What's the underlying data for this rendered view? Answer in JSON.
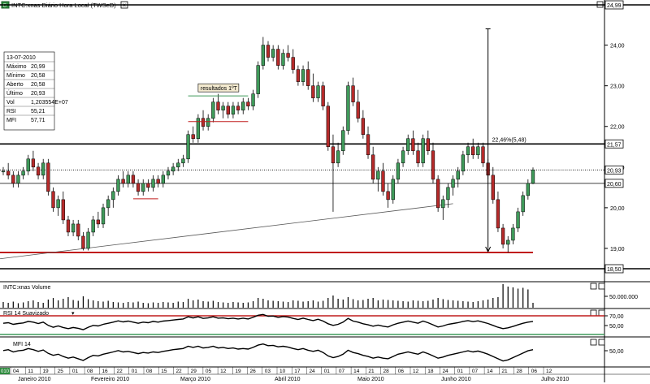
{
  "window": {
    "title": "INTC:xnas Diário Hora Local (TWSeD)",
    "close_glyph": "×"
  },
  "info_box": {
    "date": "13-07-2010",
    "rows": [
      {
        "label": "Máximo",
        "value": "20,99"
      },
      {
        "label": "Mínimo",
        "value": "20,58"
      },
      {
        "label": "Aberto",
        "value": "20,58"
      },
      {
        "label": "Último",
        "value": "20,93"
      },
      {
        "label": "Vol",
        "value": "1,203554E+07"
      },
      {
        "label": "RSI",
        "value": "55,21"
      },
      {
        "label": "MFI",
        "value": "57,71"
      }
    ]
  },
  "annotations": {
    "earnings_label": "resultados 1ºT",
    "move_label": "22,46%(5,48)"
  },
  "panels": {
    "volume_title": "INTC:xnas Volume",
    "rsi_title": "RSI 14 Suavizado",
    "mfi_title": "MFI 14",
    "volume_tick": "50.000.000",
    "rsi_ticks": [
      "70,00",
      "50,00"
    ],
    "mfi_ticks": [
      "50,00"
    ]
  },
  "colors": {
    "up": "#3f9a5a",
    "down": "#b52a2a",
    "support": "#c01c1c",
    "resistance": "#000000",
    "earnings_line": "#3f9a5a"
  },
  "chart_data": {
    "type": "candlestick",
    "symbol": "INTC:xnas",
    "ylim": [
      18.5,
      24.99
    ],
    "y_ticks": [
      19,
      20,
      21,
      22,
      23,
      24
    ],
    "y_tick_labels": [
      "19,00",
      "20,00",
      "21,00",
      "22,00",
      "23,00",
      "24,00"
    ],
    "price_labels": [
      {
        "value": 24.99,
        "text": "24,99"
      },
      {
        "value": 21.57,
        "text": "21,57"
      },
      {
        "value": 20.93,
        "text": "20,93"
      },
      {
        "value": 20.6,
        "text": "20,60"
      },
      {
        "value": 18.5,
        "text": "18,50"
      }
    ],
    "day_labels": [
      "04",
      "11",
      "19",
      "25",
      "01",
      "08",
      "16",
      "22",
      "01",
      "08",
      "15",
      "22",
      "29",
      "05",
      "12",
      "19",
      "26",
      "03",
      "10",
      "17",
      "24",
      "01",
      "07",
      "14",
      "21",
      "28",
      "06",
      "12",
      "18",
      "24",
      "01",
      "07",
      "14",
      "21",
      "28",
      "06",
      "12"
    ],
    "month_labels": [
      "Janeiro 2010",
      "Fevereiro 2010",
      "Março 2010",
      "Abril 2010",
      "Maio 2010",
      "Junho 2010",
      "Julho 2010"
    ],
    "bottom_edge_label": "010",
    "ohlc": [
      [
        20.9,
        21.0,
        20.8,
        20.9
      ],
      [
        20.9,
        21.1,
        20.7,
        20.8
      ],
      [
        20.8,
        20.9,
        20.5,
        20.6
      ],
      [
        20.6,
        20.9,
        20.5,
        20.8
      ],
      [
        20.8,
        21.0,
        20.7,
        20.9
      ],
      [
        20.9,
        21.3,
        20.8,
        21.2
      ],
      [
        21.2,
        21.4,
        20.9,
        21.0
      ],
      [
        21.0,
        21.1,
        20.7,
        20.8
      ],
      [
        20.8,
        21.2,
        20.7,
        21.1
      ],
      [
        21.1,
        21.2,
        20.3,
        20.4
      ],
      [
        20.4,
        20.5,
        19.9,
        20.0
      ],
      [
        20.0,
        20.3,
        19.8,
        20.2
      ],
      [
        20.2,
        20.4,
        19.6,
        19.7
      ],
      [
        19.7,
        19.8,
        19.3,
        19.4
      ],
      [
        19.4,
        19.7,
        19.3,
        19.6
      ],
      [
        19.6,
        19.7,
        19.2,
        19.3
      ],
      [
        19.3,
        19.4,
        18.95,
        19.0
      ],
      [
        19.0,
        19.5,
        18.95,
        19.4
      ],
      [
        19.4,
        19.8,
        19.3,
        19.7
      ],
      [
        19.7,
        19.9,
        19.5,
        19.6
      ],
      [
        19.6,
        20.1,
        19.5,
        20.0
      ],
      [
        20.0,
        20.3,
        19.8,
        20.2
      ],
      [
        20.2,
        20.5,
        20.0,
        20.4
      ],
      [
        20.4,
        20.8,
        20.3,
        20.7
      ],
      [
        20.7,
        20.9,
        20.5,
        20.6
      ],
      [
        20.6,
        20.9,
        20.5,
        20.8
      ],
      [
        20.8,
        20.9,
        20.5,
        20.6
      ],
      [
        20.6,
        20.7,
        20.3,
        20.4
      ],
      [
        20.4,
        20.7,
        20.3,
        20.6
      ],
      [
        20.6,
        20.7,
        20.4,
        20.5
      ],
      [
        20.5,
        20.8,
        20.4,
        20.7
      ],
      [
        20.7,
        20.8,
        20.5,
        20.6
      ],
      [
        20.6,
        20.9,
        20.5,
        20.8
      ],
      [
        20.8,
        21.0,
        20.7,
        20.9
      ],
      [
        20.9,
        21.1,
        20.8,
        21.0
      ],
      [
        21.0,
        21.2,
        20.9,
        21.1
      ],
      [
        21.1,
        21.3,
        21.0,
        21.2
      ],
      [
        21.2,
        21.9,
        21.1,
        21.8
      ],
      [
        21.8,
        22.0,
        21.6,
        21.7
      ],
      [
        21.7,
        22.3,
        21.6,
        22.2
      ],
      [
        22.2,
        22.4,
        21.9,
        22.0
      ],
      [
        22.0,
        22.3,
        21.9,
        22.2
      ],
      [
        22.2,
        22.7,
        22.1,
        22.6
      ],
      [
        22.6,
        22.8,
        22.3,
        22.4
      ],
      [
        22.4,
        22.6,
        22.2,
        22.5
      ],
      [
        22.5,
        22.6,
        22.2,
        22.3
      ],
      [
        22.3,
        22.6,
        22.2,
        22.5
      ],
      [
        22.5,
        22.6,
        22.3,
        22.4
      ],
      [
        22.4,
        22.7,
        22.3,
        22.6
      ],
      [
        22.6,
        22.7,
        22.4,
        22.5
      ],
      [
        22.5,
        22.9,
        22.4,
        22.8
      ],
      [
        22.8,
        23.6,
        22.7,
        23.5
      ],
      [
        23.5,
        24.2,
        23.4,
        24.0
      ],
      [
        24.0,
        24.1,
        23.6,
        23.7
      ],
      [
        23.7,
        24.0,
        23.6,
        23.9
      ],
      [
        23.9,
        24.0,
        23.4,
        23.5
      ],
      [
        23.5,
        23.9,
        23.4,
        23.8
      ],
      [
        23.8,
        24.0,
        23.6,
        23.7
      ],
      [
        23.7,
        23.9,
        23.3,
        23.4
      ],
      [
        23.4,
        23.5,
        23.0,
        23.1
      ],
      [
        23.1,
        23.5,
        23.0,
        23.4
      ],
      [
        23.4,
        23.6,
        22.9,
        23.0
      ],
      [
        23.0,
        23.3,
        22.6,
        22.7
      ],
      [
        22.7,
        23.1,
        22.6,
        23.0
      ],
      [
        23.0,
        23.1,
        22.4,
        22.5
      ],
      [
        22.5,
        22.6,
        21.4,
        21.5
      ],
      [
        21.5,
        21.8,
        19.9,
        21.1
      ],
      [
        21.1,
        21.6,
        21.0,
        21.4
      ],
      [
        21.4,
        22.0,
        21.3,
        21.9
      ],
      [
        21.9,
        23.1,
        21.8,
        23.0
      ],
      [
        23.0,
        23.2,
        22.5,
        22.6
      ],
      [
        22.6,
        22.9,
        22.1,
        22.2
      ],
      [
        22.2,
        22.4,
        21.7,
        21.8
      ],
      [
        21.8,
        22.0,
        21.2,
        21.3
      ],
      [
        21.3,
        21.5,
        20.6,
        20.7
      ],
      [
        20.7,
        21.0,
        20.4,
        20.9
      ],
      [
        20.9,
        21.1,
        20.3,
        20.4
      ],
      [
        20.4,
        20.6,
        20.0,
        20.2
      ],
      [
        20.2,
        20.8,
        20.1,
        20.7
      ],
      [
        20.7,
        21.2,
        20.6,
        21.1
      ],
      [
        21.1,
        21.5,
        21.0,
        21.4
      ],
      [
        21.4,
        21.8,
        21.3,
        21.7
      ],
      [
        21.7,
        21.9,
        21.3,
        21.4
      ],
      [
        21.4,
        21.6,
        21.0,
        21.1
      ],
      [
        21.1,
        21.8,
        21.0,
        21.7
      ],
      [
        21.7,
        21.9,
        21.3,
        21.4
      ],
      [
        21.4,
        21.6,
        20.6,
        20.7
      ],
      [
        20.7,
        20.8,
        19.9,
        20.0
      ],
      [
        20.0,
        20.3,
        19.7,
        20.2
      ],
      [
        20.2,
        20.6,
        20.0,
        20.5
      ],
      [
        20.5,
        20.8,
        20.3,
        20.7
      ],
      [
        20.7,
        21.0,
        20.5,
        20.9
      ],
      [
        20.9,
        21.4,
        20.8,
        21.3
      ],
      [
        21.3,
        21.6,
        21.1,
        21.5
      ],
      [
        21.5,
        21.7,
        21.2,
        21.3
      ],
      [
        21.3,
        21.6,
        21.2,
        21.5
      ],
      [
        21.5,
        21.6,
        21.0,
        21.1
      ],
      [
        21.1,
        21.2,
        20.7,
        20.8
      ],
      [
        20.8,
        21.0,
        20.1,
        20.2
      ],
      [
        20.2,
        20.4,
        19.4,
        19.5
      ],
      [
        19.5,
        19.6,
        19.0,
        19.1
      ],
      [
        19.1,
        19.3,
        18.9,
        19.2
      ],
      [
        19.2,
        19.6,
        19.1,
        19.5
      ],
      [
        19.5,
        20.0,
        19.4,
        19.9
      ],
      [
        19.9,
        20.4,
        19.8,
        20.3
      ],
      [
        20.3,
        20.7,
        20.2,
        20.6
      ],
      [
        20.6,
        20.99,
        20.58,
        20.93
      ]
    ],
    "volume_millions": [
      14,
      12,
      15,
      11,
      13,
      16,
      18,
      14,
      12,
      20,
      24,
      18,
      22,
      26,
      19,
      17,
      28,
      21,
      18,
      16,
      15,
      17,
      14,
      13,
      12,
      14,
      13,
      15,
      12,
      11,
      13,
      12,
      14,
      13,
      12,
      15,
      14,
      22,
      18,
      20,
      16,
      15,
      17,
      14,
      13,
      12,
      14,
      13,
      12,
      13,
      16,
      24,
      22,
      18,
      17,
      16,
      15,
      14,
      18,
      17,
      15,
      16,
      18,
      15,
      17,
      24,
      30,
      22,
      20,
      26,
      21,
      18,
      19,
      22,
      24,
      18,
      20,
      19,
      18,
      17,
      16,
      15,
      18,
      17,
      16,
      17,
      20,
      24,
      21,
      19,
      18,
      17,
      16,
      15,
      14,
      16,
      18,
      20,
      24,
      26,
      58,
      52,
      50,
      47,
      49,
      45,
      12
    ],
    "rsi": [
      48,
      50,
      44,
      47,
      49,
      55,
      52,
      47,
      52,
      40,
      33,
      38,
      32,
      28,
      32,
      29,
      24,
      33,
      40,
      38,
      44,
      48,
      52,
      57,
      53,
      56,
      52,
      48,
      52,
      50,
      55,
      52,
      56,
      58,
      60,
      62,
      64,
      72,
      68,
      72,
      66,
      68,
      72,
      67,
      68,
      65,
      67,
      64,
      67,
      64,
      70,
      78,
      81,
      74,
      75,
      70,
      73,
      71,
      66,
      62,
      67,
      62,
      58,
      63,
      56,
      46,
      40,
      44,
      52,
      66,
      56,
      52,
      46,
      42,
      37,
      41,
      37,
      34,
      42,
      48,
      52,
      56,
      52,
      48,
      56,
      50,
      42,
      34,
      38,
      44,
      47,
      50,
      55,
      58,
      54,
      57,
      52,
      47,
      40,
      33,
      28,
      31,
      36,
      42,
      48,
      52,
      55
    ],
    "mfi": [
      55,
      58,
      50,
      54,
      56,
      62,
      58,
      52,
      57,
      45,
      38,
      42,
      34,
      28,
      32,
      26,
      20,
      30,
      38,
      36,
      42,
      46,
      50,
      55,
      50,
      52,
      48,
      44,
      48,
      46,
      50,
      48,
      52,
      55,
      58,
      60,
      62,
      70,
      66,
      70,
      64,
      66,
      70,
      64,
      66,
      62,
      64,
      60,
      62,
      60,
      66,
      74,
      78,
      72,
      73,
      68,
      70,
      67,
      62,
      58,
      62,
      56,
      52,
      56,
      48,
      36,
      30,
      34,
      42,
      56,
      48,
      44,
      38,
      34,
      28,
      32,
      28,
      26,
      34,
      42,
      46,
      50,
      46,
      42,
      50,
      44,
      36,
      28,
      32,
      38,
      42,
      46,
      50,
      54,
      50,
      53,
      48,
      42,
      34,
      26,
      18,
      22,
      30,
      38,
      46,
      54,
      58
    ],
    "levels": {
      "resistance": 21.57,
      "support": 18.9,
      "last": 20.93,
      "ref": 20.6
    },
    "earnings_marks": [
      {
        "start_index": 37,
        "end_index": 49,
        "upper": 22.75,
        "lower": 22.12
      }
    ],
    "small_ranges": [
      {
        "start_index": 26,
        "end_index": 31,
        "value": 20.22
      }
    ],
    "trendline": {
      "from": {
        "index": -1,
        "value": 18.74
      },
      "to": {
        "index": 90,
        "value": 20.1
      }
    },
    "move_arrow": {
      "index": 97,
      "from": 24.4,
      "to": 18.92
    }
  }
}
